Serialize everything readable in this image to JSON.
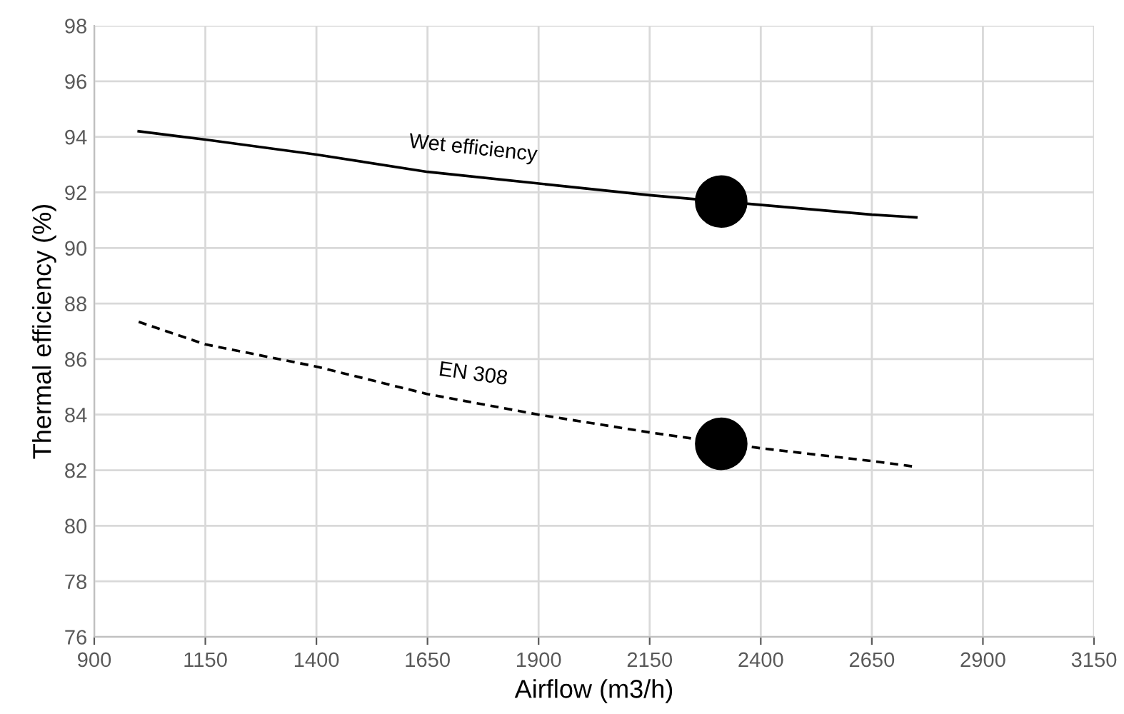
{
  "chart_data": {
    "type": "line",
    "xlabel": "Airflow (m3/h)",
    "ylabel": "Thermal efficiency (%)",
    "series": [
      {
        "name": "Wet efficiency",
        "color": "#000000",
        "line_style": "solid",
        "x": [
          1000,
          1150,
          1400,
          1650,
          2150,
          2650,
          2750
        ],
        "values": [
          94.2,
          93.9,
          93.36,
          92.74,
          91.9,
          91.2,
          91.1
        ]
      },
      {
        "name": "EN 308",
        "color": "#000000",
        "line_style": "dashed",
        "x": [
          1000,
          1150,
          1400,
          1650,
          1900,
          2150,
          2400,
          2650,
          2750
        ],
        "values": [
          87.34,
          86.53,
          85.73,
          84.74,
          84.0,
          83.36,
          82.79,
          82.33,
          82.12
        ]
      },
      {
        "type": "scatter",
        "color": "#000000",
        "marker": "circle",
        "x": [
          2311,
          2311
        ],
        "values": [
          91.67,
          82.95
        ]
      }
    ],
    "xlim": [
      900,
      3150
    ],
    "xticks": [
      900,
      1150,
      1400,
      1650,
      1900,
      2150,
      2400,
      2650,
      2900,
      3150
    ],
    "ylim": [
      76,
      98
    ],
    "yticks": [
      76,
      78,
      80,
      82,
      84,
      86,
      88,
      90,
      92,
      94,
      96,
      98
    ],
    "grid": true,
    "legend": false
  }
}
